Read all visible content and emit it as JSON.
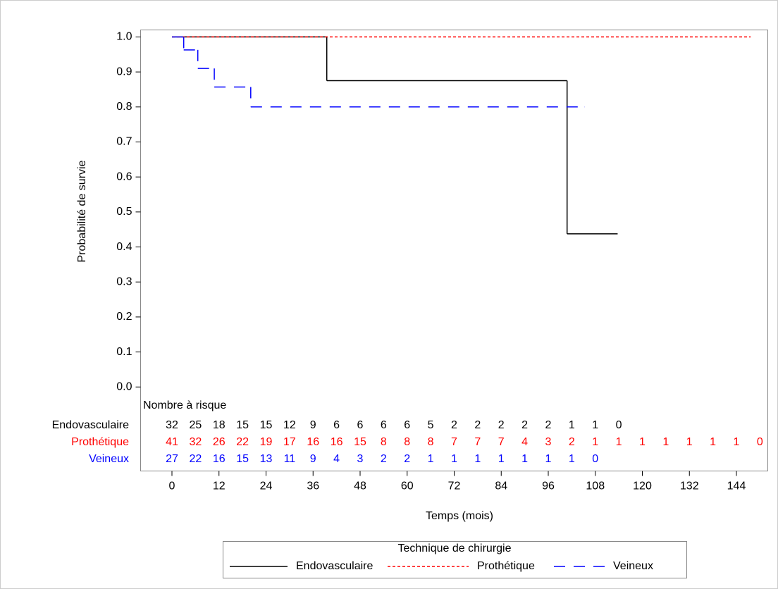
{
  "chart_data": {
    "type": "step",
    "xlabel": "Temps (mois)",
    "ylabel": "Probabilité de survie",
    "xlim": [
      -8,
      152
    ],
    "ylim": [
      -0.24,
      1.02
    ],
    "xticks": [
      0,
      12,
      24,
      36,
      48,
      60,
      72,
      84,
      96,
      108,
      120,
      132,
      144
    ],
    "yticks": [
      {
        "value": 0,
        "label": "0.0"
      },
      0.1,
      0.2,
      0.3,
      0.4,
      0.5,
      0.6,
      0.7,
      0.8,
      0.9,
      {
        "value": 1,
        "label": "1.0"
      }
    ],
    "legend_title": "Technique de chirurgie",
    "at_risk_title": "Nombre à risque",
    "at_risk_times": [
      0,
      6,
      12,
      18,
      24,
      30,
      36,
      42,
      48,
      54,
      60,
      66,
      72,
      78,
      84,
      90,
      96,
      102,
      108,
      114,
      120,
      126,
      132,
      138,
      144,
      150
    ],
    "series": [
      {
        "name": "Endovasculaire",
        "color": "#000000",
        "dash": "none",
        "x": [
          0,
          39.5,
          100.8,
          113.7
        ],
        "values": [
          1,
          0.875,
          0.4375,
          0.4375
        ],
        "at_risk": [
          "32",
          "25",
          "18",
          "15",
          "15",
          "12",
          "9",
          "6",
          "6",
          "6",
          "6",
          "5",
          "2",
          "2",
          "2",
          "2",
          "2",
          "1",
          "1",
          "0"
        ]
      },
      {
        "name": "Prothétique",
        "color": "#ff0000",
        "dash": "4,3",
        "x": [
          0,
          147.6
        ],
        "values": [
          1,
          1
        ],
        "at_risk": [
          "41",
          "32",
          "26",
          "22",
          "19",
          "17",
          "16",
          "16",
          "15",
          "8",
          "8",
          "8",
          "7",
          "7",
          "7",
          "4",
          "3",
          "2",
          "1",
          "1",
          "1",
          "1",
          "1",
          "1",
          "1",
          "0"
        ]
      },
      {
        "name": "Veineux",
        "color": "#0000ff",
        "dash": "16,12",
        "x": [
          0,
          3,
          6.6,
          10.8,
          20.1,
          105.3
        ],
        "values": [
          1,
          0.963,
          0.91,
          0.857,
          0.8,
          0.8
        ],
        "at_risk": [
          "27",
          "22",
          "16",
          "15",
          "13",
          "11",
          "9",
          "4",
          "3",
          "2",
          "2",
          "1",
          "1",
          "1",
          "1",
          "1",
          "1",
          "1",
          "0"
        ]
      }
    ]
  }
}
